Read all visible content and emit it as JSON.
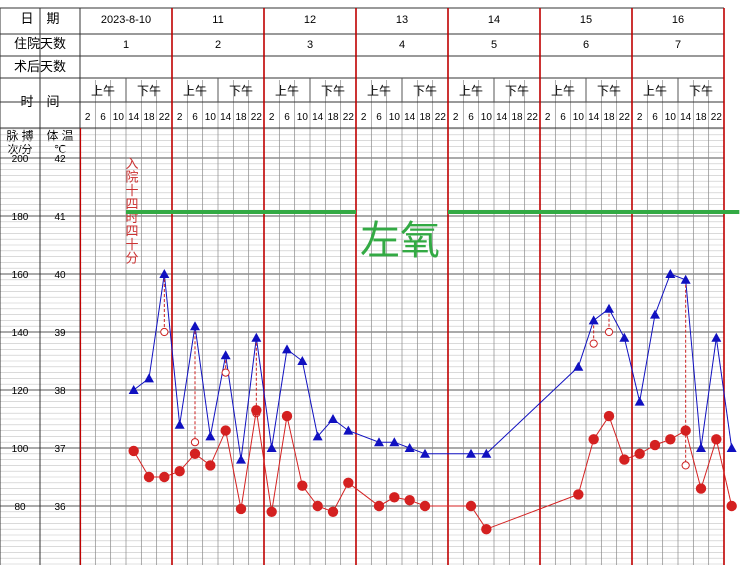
{
  "header": {
    "date_label": "日　期",
    "hospital_day_label": "住院天数",
    "postop_day_label": "术后天数",
    "time_label": "时　间",
    "am_label": "上午",
    "pm_label": "下午",
    "pulse_label": "脉 搏",
    "pulse_unit": "次/分",
    "temp_label": "体 温",
    "temp_unit": "℃"
  },
  "days": [
    {
      "date": "2023-8-10",
      "hospital_day": "1"
    },
    {
      "date": "11",
      "hospital_day": "2"
    },
    {
      "date": "12",
      "hospital_day": "3"
    },
    {
      "date": "13",
      "hospital_day": "4"
    },
    {
      "date": "14",
      "hospital_day": "5"
    },
    {
      "date": "15",
      "hospital_day": "6"
    },
    {
      "date": "16",
      "hospital_day": "7"
    }
  ],
  "time_slots": [
    "2",
    "6",
    "10",
    "14",
    "18",
    "22"
  ],
  "pulse_ticks": [
    "200",
    "180",
    "160",
    "140",
    "120",
    "100",
    "80"
  ],
  "temp_ticks": [
    "42",
    "41",
    "40",
    "39",
    "38",
    "37",
    "36"
  ],
  "annotations": {
    "admission_note": "入院十四时四十分",
    "oxygen_note": "左氧"
  },
  "colors": {
    "day_divider": "#c00000",
    "pulse": "#d42020",
    "temperature": "#1010c0",
    "cooled": "#cc2020",
    "oxygen": "#33aa44",
    "grid": "#9a9a9a"
  },
  "chart_data": {
    "type": "line",
    "x_unit": "4-hour time slot index (day*6 + slot, slots 2,6,10,14,18,22)",
    "temp_ylim": [
      35.5,
      42.5
    ],
    "pulse_ylim": [
      70,
      210
    ],
    "series": [
      {
        "name": "体温",
        "marker": "triangle",
        "points": [
          {
            "x": 3,
            "y": 38.0
          },
          {
            "x": 4,
            "y": 38.2
          },
          {
            "x": 5,
            "y": 40.0
          },
          {
            "x": 6,
            "y": 37.4
          },
          {
            "x": 7,
            "y": 39.1
          },
          {
            "x": 8,
            "y": 37.2
          },
          {
            "x": 9,
            "y": 38.6
          },
          {
            "x": 10,
            "y": 36.8
          },
          {
            "x": 11,
            "y": 38.9
          },
          {
            "x": 12,
            "y": 37.0
          },
          {
            "x": 13,
            "y": 38.7
          },
          {
            "x": 14,
            "y": 38.5
          },
          {
            "x": 15,
            "y": 37.2
          },
          {
            "x": 16,
            "y": 37.5
          },
          {
            "x": 17,
            "y": 37.3
          },
          {
            "x": 19,
            "y": 37.1
          },
          {
            "x": 20,
            "y": 37.1
          },
          {
            "x": 21,
            "y": 37.0
          },
          {
            "x": 22,
            "y": 36.9
          },
          {
            "x": 25,
            "y": 36.9
          },
          {
            "x": 26,
            "y": 36.9
          },
          {
            "x": 32,
            "y": 38.4
          },
          {
            "x": 33,
            "y": 39.2
          },
          {
            "x": 34,
            "y": 39.4
          },
          {
            "x": 35,
            "y": 38.9
          },
          {
            "x": 36,
            "y": 37.8
          },
          {
            "x": 37,
            "y": 39.3
          },
          {
            "x": 38,
            "y": 40.0
          },
          {
            "x": 39,
            "y": 39.9
          },
          {
            "x": 40,
            "y": 37.0
          },
          {
            "x": 41,
            "y": 38.9
          },
          {
            "x": 42,
            "y": 37.0
          }
        ],
        "cooled": [
          {
            "x": 5,
            "y": 39.0
          },
          {
            "x": 7,
            "y": 37.1
          },
          {
            "x": 9,
            "y": 38.3
          },
          {
            "x": 11,
            "y": 37.6
          },
          {
            "x": 33,
            "y": 38.8
          },
          {
            "x": 34,
            "y": 39.0
          },
          {
            "x": 39,
            "y": 36.7
          }
        ]
      },
      {
        "name": "脉搏",
        "marker": "circle",
        "points": [
          {
            "x": 3,
            "y": 99
          },
          {
            "x": 4,
            "y": 90
          },
          {
            "x": 5,
            "y": 90
          },
          {
            "x": 6,
            "y": 92
          },
          {
            "x": 7,
            "y": 98
          },
          {
            "x": 8,
            "y": 94
          },
          {
            "x": 9,
            "y": 106
          },
          {
            "x": 10,
            "y": 79
          },
          {
            "x": 11,
            "y": 113
          },
          {
            "x": 12,
            "y": 78
          },
          {
            "x": 13,
            "y": 111
          },
          {
            "x": 14,
            "y": 87
          },
          {
            "x": 15,
            "y": 80
          },
          {
            "x": 16,
            "y": 78
          },
          {
            "x": 17,
            "y": 88
          },
          {
            "x": 19,
            "y": 80
          },
          {
            "x": 20,
            "y": 83
          },
          {
            "x": 21,
            "y": 82
          },
          {
            "x": 22,
            "y": 80
          },
          {
            "x": 25,
            "y": 80
          },
          {
            "x": 26,
            "y": 72
          },
          {
            "x": 32,
            "y": 84
          },
          {
            "x": 33,
            "y": 103
          },
          {
            "x": 34,
            "y": 111
          },
          {
            "x": 35,
            "y": 96
          },
          {
            "x": 36,
            "y": 98
          },
          {
            "x": 37,
            "y": 101
          },
          {
            "x": 38,
            "y": 103
          },
          {
            "x": 39,
            "y": 106
          },
          {
            "x": 40,
            "y": 86
          },
          {
            "x": 41,
            "y": 103
          },
          {
            "x": 42,
            "y": 80
          }
        ]
      }
    ],
    "oxygen_segments": [
      {
        "from": 3,
        "to": 18,
        "label": "左氧"
      },
      {
        "from": 24,
        "to": 43
      }
    ]
  }
}
